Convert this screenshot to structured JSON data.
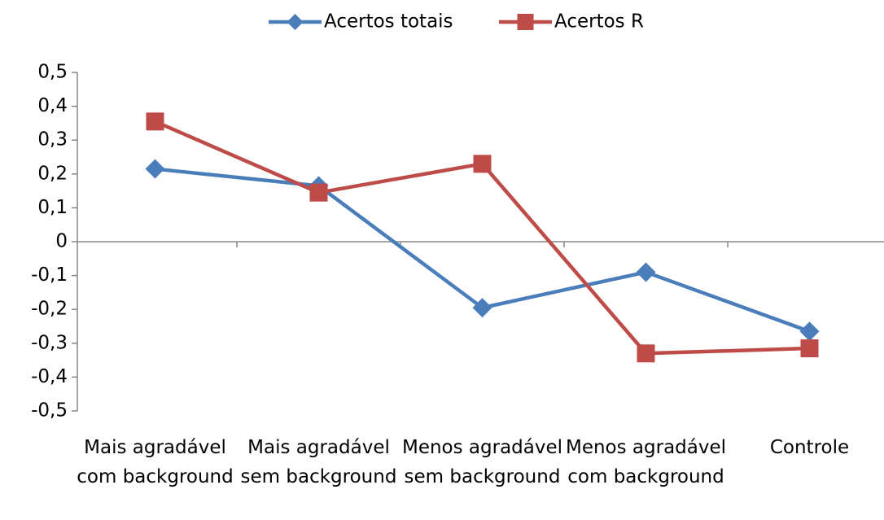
{
  "chart_data": {
    "type": "line",
    "categories": [
      "Mais agradável com background",
      "Mais agradável sem background",
      "Menos agradável sem background",
      "Menos agradável com background",
      "Controle"
    ],
    "series": [
      {
        "name": "Acertos totais",
        "color": "#4a7ebb",
        "marker": "diamond",
        "values": [
          0.215,
          0.165,
          -0.195,
          -0.09,
          -0.265
        ]
      },
      {
        "name": "Acertos R",
        "color": "#be4b48",
        "marker": "square",
        "values": [
          0.355,
          0.145,
          0.23,
          -0.33,
          -0.315
        ]
      }
    ],
    "ylim": [
      -0.5,
      0.5
    ],
    "yticks": [
      {
        "value": 0.5,
        "label": "0,5"
      },
      {
        "value": 0.4,
        "label": "0,4"
      },
      {
        "value": 0.3,
        "label": "0,3"
      },
      {
        "value": 0.2,
        "label": "0,2"
      },
      {
        "value": 0.1,
        "label": "0,1"
      },
      0,
      {
        "value": -0.1,
        "label": "-0,1"
      },
      {
        "value": -0.2,
        "label": "-0,2"
      },
      {
        "value": -0.3,
        "label": "-0,3"
      },
      {
        "value": -0.4,
        "label": "-0,4"
      },
      {
        "value": -0.5,
        "label": "-0,5"
      }
    ],
    "legend": "top",
    "grid": false
  }
}
